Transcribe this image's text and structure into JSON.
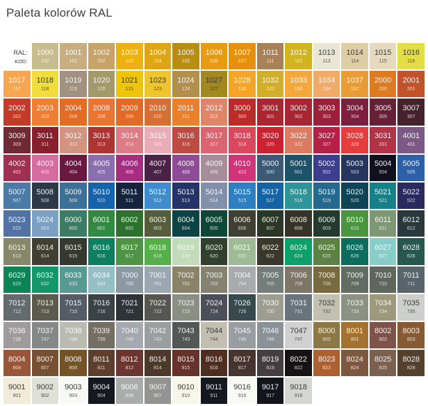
{
  "title": "Paleta kolorów RAL",
  "header": {
    "ral_label": "RAL:",
    "kod_label": "KOD:"
  },
  "colors": {
    "light_text": "#FFFFFF",
    "dark_text": "#3B3B3B",
    "title_color": "#3E3E3D",
    "background": "#FFFFFF"
  },
  "chart_data": {
    "type": "table",
    "title": "Paleta kolorów RAL",
    "columns": [
      "RAL",
      "KOD"
    ],
    "columns_per_row": 15,
    "legend_position": "none",
    "rows": [
      [
        {
          "header": true
        },
        {
          "ral": "1000",
          "kod": "100",
          "hex": "#C6BC8F"
        },
        {
          "ral": "1001",
          "kod": "101",
          "hex": "#C7AD7F"
        },
        {
          "ral": "1002",
          "kod": "102",
          "hex": "#C7A368"
        },
        {
          "ral": "1003",
          "kod": "103",
          "hex": "#EDB211"
        },
        {
          "ral": "1004",
          "kod": "104",
          "hex": "#DFA612"
        },
        {
          "ral": "1005",
          "kod": "105",
          "hex": "#B78D12"
        },
        {
          "ral": "1006",
          "kod": "106",
          "hex": "#E89B10"
        },
        {
          "ral": "1007",
          "kod": "107",
          "hex": "#E6910E"
        },
        {
          "ral": "1011",
          "kod": "111",
          "hex": "#A98159"
        },
        {
          "ral": "1012",
          "kod": "112",
          "hex": "#D2B51E"
        },
        {
          "ral": "1013",
          "kod": "113",
          "hex": "#E9E6D4",
          "dark_text": true
        },
        {
          "ral": "1014",
          "kod": "114",
          "hex": "#DECDA5",
          "dark_text": true
        },
        {
          "ral": "1015",
          "kod": "115",
          "hex": "#E7D9C0",
          "dark_text": true
        },
        {
          "ral": "1016",
          "kod": "116",
          "hex": "#E4DE45",
          "dark_text": true
        }
      ],
      [
        {
          "ral": "1017",
          "kod": "117",
          "hex": "#F4A651"
        },
        {
          "ral": "1018",
          "kod": "118",
          "hex": "#EFDC3E",
          "dark_text": true
        },
        {
          "ral": "1019",
          "kod": "119",
          "hex": "#A29181"
        },
        {
          "ral": "1020",
          "kod": "120",
          "hex": "#A29A68"
        },
        {
          "ral": "1021",
          "kod": "121",
          "hex": "#EDC50A",
          "dark_text": true
        },
        {
          "ral": "1023",
          "kod": "123",
          "hex": "#EFC52E",
          "dark_text": true
        },
        {
          "ral": "1024",
          "kod": "124",
          "hex": "#B28F4D"
        },
        {
          "ral": "1027",
          "kod": "127",
          "hex": "#A1891F",
          "dark_text": true
        },
        {
          "ral": "1028",
          "kod": "128",
          "hex": "#F4A428"
        },
        {
          "ral": "1032",
          "kod": "132",
          "hex": "#D2AF2A"
        },
        {
          "ral": "1033",
          "kod": "133",
          "hex": "#F4A83C"
        },
        {
          "ral": "1034",
          "kod": "134",
          "hex": "#EFAB67"
        },
        {
          "ral": "1037",
          "kod": "137",
          "hex": "#EA9C34"
        },
        {
          "ral": "2000",
          "kod": "200",
          "hex": "#DC7B20"
        },
        {
          "ral": "2001",
          "kod": "201",
          "hex": "#C0532A"
        }
      ],
      [
        {
          "ral": "2002",
          "kod": "202",
          "hex": "#C23B27"
        },
        {
          "ral": "2003",
          "kod": "203",
          "hex": "#EF7D33"
        },
        {
          "ral": "2004",
          "kod": "204",
          "hex": "#E56A24"
        },
        {
          "ral": "2008",
          "kod": "208",
          "hex": "#EC7430"
        },
        {
          "ral": "2009",
          "kod": "209",
          "hex": "#E26A26"
        },
        {
          "ral": "2010",
          "kod": "210",
          "hex": "#D76F34"
        },
        {
          "ral": "2011",
          "kod": "211",
          "hex": "#E8802E"
        },
        {
          "ral": "2012",
          "kod": "212",
          "hex": "#E18568"
        },
        {
          "ral": "3000",
          "kod": "300",
          "hex": "#BB2C29"
        },
        {
          "ral": "3001",
          "kod": "301",
          "hex": "#AA2732"
        },
        {
          "ral": "3002",
          "kod": "302",
          "hex": "#A92532"
        },
        {
          "ral": "3003",
          "kod": "303",
          "hex": "#9A203C"
        },
        {
          "ral": "3004",
          "kod": "304",
          "hex": "#7C1F3E"
        },
        {
          "ral": "3005",
          "kod": "305",
          "hex": "#672038"
        },
        {
          "ral": "3007",
          "kod": "307",
          "hex": "#45222E"
        }
      ],
      [
        {
          "ral": "3009",
          "kod": "309",
          "hex": "#6F2A35"
        },
        {
          "ral": "3011",
          "kod": "311",
          "hex": "#86202D"
        },
        {
          "ral": "3012",
          "kod": "312",
          "hex": "#D29380"
        },
        {
          "ral": "3013",
          "kod": "313",
          "hex": "#AE3434"
        },
        {
          "ral": "3014",
          "kod": "314",
          "hex": "#DC7C85"
        },
        {
          "ral": "3015",
          "kod": "315",
          "hex": "#E8ABB7"
        },
        {
          "ral": "3016",
          "kod": "316",
          "hex": "#BC4B43"
        },
        {
          "ral": "3017",
          "kod": "317",
          "hex": "#DC6471"
        },
        {
          "ral": "3018",
          "kod": "318",
          "hex": "#D9485C"
        },
        {
          "ral": "3020",
          "kod": "320",
          "hex": "#CB2232"
        },
        {
          "ral": "3022",
          "kod": "322",
          "hex": "#DC7A62"
        },
        {
          "ral": "3027",
          "kod": "327",
          "hex": "#B52049"
        },
        {
          "ral": "3028",
          "kod": "328",
          "hex": "#E73C3E"
        },
        {
          "ral": "3031",
          "kod": "331",
          "hex": "#B13345"
        },
        {
          "ral": "4001",
          "kod": "401",
          "hex": "#7D5A86"
        }
      ],
      [
        {
          "ral": "4002",
          "kod": "402",
          "hex": "#A03052"
        },
        {
          "ral": "4003",
          "kod": "403",
          "hex": "#D56B9E"
        },
        {
          "ral": "4004",
          "kod": "404",
          "hex": "#6B1840"
        },
        {
          "ral": "4005",
          "kod": "405",
          "hex": "#8A6EAE"
        },
        {
          "ral": "4006",
          "kod": "406",
          "hex": "#A52C81"
        },
        {
          "ral": "4007",
          "kod": "407",
          "hex": "#4A2147"
        },
        {
          "ral": "4008",
          "kod": "408",
          "hex": "#8F4B96"
        },
        {
          "ral": "4009",
          "kod": "409",
          "hex": "#A78D99"
        },
        {
          "ral": "4010",
          "kod": "410",
          "hex": "#D13479"
        },
        {
          "ral": "5000",
          "kod": "500",
          "hex": "#3C5A76"
        },
        {
          "ral": "5001",
          "kod": "501",
          "hex": "#1D5269"
        },
        {
          "ral": "5002",
          "kod": "502",
          "hex": "#3A3E8C"
        },
        {
          "ral": "5003",
          "kod": "503",
          "hex": "#25365C"
        },
        {
          "ral": "5004",
          "kod": "504",
          "hex": "#11101F"
        },
        {
          "ral": "5005",
          "kod": "505",
          "hex": "#2C60A9"
        }
      ],
      [
        {
          "ral": "5007",
          "kod": "507",
          "hex": "#4A7AA5"
        },
        {
          "ral": "5008",
          "kod": "508",
          "hex": "#2B3947"
        },
        {
          "ral": "5009",
          "kod": "509",
          "hex": "#3D7096"
        },
        {
          "ral": "5010",
          "kod": "510",
          "hex": "#1463AC"
        },
        {
          "ral": "5011",
          "kod": "511",
          "hex": "#16243E"
        },
        {
          "ral": "5012",
          "kod": "512",
          "hex": "#3E8CCE"
        },
        {
          "ral": "5013",
          "kod": "513",
          "hex": "#243469"
        },
        {
          "ral": "5014",
          "kod": "514",
          "hex": "#8290AB"
        },
        {
          "ral": "5015",
          "kod": "515",
          "hex": "#2E7FC2"
        },
        {
          "ral": "5017",
          "kod": "517",
          "hex": "#1463A5"
        },
        {
          "ral": "5018",
          "kod": "518",
          "hex": "#2D9499"
        },
        {
          "ral": "5019",
          "kod": "519",
          "hex": "#26698F"
        },
        {
          "ral": "5020",
          "kod": "520",
          "hex": "#0E4455"
        },
        {
          "ral": "5021",
          "kod": "521",
          "hex": "#178189"
        },
        {
          "ral": "5022",
          "kod": "522",
          "hex": "#2A2A60"
        }
      ],
      [
        {
          "ral": "5023",
          "kod": "523",
          "hex": "#5272A3"
        },
        {
          "ral": "5024",
          "kod": "524",
          "hex": "#7BA0C4"
        },
        {
          "ral": "6000",
          "kod": "600",
          "hex": "#3A7D64"
        },
        {
          "ral": "6001",
          "kod": "601",
          "hex": "#318942"
        },
        {
          "ral": "6002",
          "kod": "602",
          "hex": "#2D712F"
        },
        {
          "ral": "6003",
          "kod": "603",
          "hex": "#565D3B"
        },
        {
          "ral": "6004",
          "kod": "604",
          "hex": "#0C4344"
        },
        {
          "ral": "6005",
          "kod": "605",
          "hex": "#0F4736"
        },
        {
          "ral": "6006",
          "kod": "606",
          "hex": "#403F34"
        },
        {
          "ral": "6007",
          "kod": "607",
          "hex": "#2A3626"
        },
        {
          "ral": "6008",
          "kod": "608",
          "hex": "#363428"
        },
        {
          "ral": "6009",
          "kod": "609",
          "hex": "#233A2C"
        },
        {
          "ral": "6010",
          "kod": "610",
          "hex": "#4B9540"
        },
        {
          "ral": "6011",
          "kod": "611",
          "hex": "#7D9873"
        },
        {
          "ral": "6012",
          "kod": "612",
          "hex": "#29383B"
        }
      ],
      [
        {
          "ral": "6013",
          "kod": "613",
          "hex": "#87876A"
        },
        {
          "ral": "6014",
          "kod": "614",
          "hex": "#413F31"
        },
        {
          "ral": "6015",
          "kod": "615",
          "hex": "#36392F"
        },
        {
          "ral": "6016",
          "kod": "616",
          "hex": "#0C8061"
        },
        {
          "ral": "6017",
          "kod": "617",
          "hex": "#4F9347"
        },
        {
          "ral": "6018",
          "kod": "618",
          "hex": "#56B04A"
        },
        {
          "ral": "6019",
          "kod": "619",
          "hex": "#C0DCB8"
        },
        {
          "ral": "6020",
          "kod": "620",
          "hex": "#31402F"
        },
        {
          "ral": "6021",
          "kod": "621",
          "hex": "#9DBB95"
        },
        {
          "ral": "6022",
          "kod": "622",
          "hex": "#3A372B"
        },
        {
          "ral": "6024",
          "kod": "624",
          "hex": "#0DA06A"
        },
        {
          "ral": "6025",
          "kod": "625",
          "hex": "#5C8343"
        },
        {
          "ral": "6026",
          "kod": "626",
          "hex": "#0B6D5D"
        },
        {
          "ral": "6027",
          "kod": "627",
          "hex": "#87CDC8"
        },
        {
          "ral": "6028",
          "kod": "628",
          "hex": "#275850"
        }
      ],
      [
        {
          "ral": "6029",
          "kod": "629",
          "hex": "#0C8456"
        },
        {
          "ral": "6032",
          "kod": "632",
          "hex": "#14966B"
        },
        {
          "ral": "6033",
          "kod": "633",
          "hex": "#579A93"
        },
        {
          "ral": "6034",
          "kod": "634",
          "hex": "#94BFC4"
        },
        {
          "ral": "7000",
          "kod": "700",
          "hex": "#8B99A3"
        },
        {
          "ral": "7001",
          "kod": "701",
          "hex": "#9BA7B0"
        },
        {
          "ral": "7002",
          "kod": "702",
          "hex": "#8B8368"
        },
        {
          "ral": "7003",
          "kod": "703",
          "hex": "#85826F"
        },
        {
          "ral": "7004",
          "kod": "704",
          "hex": "#A8AAAD"
        },
        {
          "ral": "7005",
          "kod": "705",
          "hex": "#747D79"
        },
        {
          "ral": "7006",
          "kod": "706",
          "hex": "#7E7666"
        },
        {
          "ral": "7008",
          "kod": "708",
          "hex": "#7A6A3F"
        },
        {
          "ral": "7009",
          "kod": "709",
          "hex": "#636C62"
        },
        {
          "ral": "7010",
          "kod": "710",
          "hex": "#5E665E"
        },
        {
          "ral": "7011",
          "kod": "711",
          "hex": "#5A646B"
        }
      ],
      [
        {
          "ral": "7012",
          "kod": "712",
          "hex": "#636B6E"
        },
        {
          "ral": "7013",
          "kod": "713",
          "hex": "#5C5A4A"
        },
        {
          "ral": "7015",
          "kod": "715",
          "hex": "#565C66"
        },
        {
          "ral": "7016",
          "kod": "716",
          "hex": "#3C4347"
        },
        {
          "ral": "7021",
          "kod": "721",
          "hex": "#2F3438"
        },
        {
          "ral": "7022",
          "kod": "722",
          "hex": "#565750"
        },
        {
          "ral": "7023",
          "kod": "723",
          "hex": "#8B8E83"
        },
        {
          "ral": "7024",
          "kod": "724",
          "hex": "#4A4F58"
        },
        {
          "ral": "7026",
          "kod": "726",
          "hex": "#384A4E"
        },
        {
          "ral": "7030",
          "kod": "730",
          "hex": "#9D9D92"
        },
        {
          "ral": "7031",
          "kod": "731",
          "hex": "#68747C"
        },
        {
          "ral": "7032",
          "kod": "732",
          "hex": "#C2C1B1",
          "dark_text": true
        },
        {
          "ral": "7033",
          "kod": "733",
          "hex": "#8B9283"
        },
        {
          "ral": "7034",
          "kod": "734",
          "hex": "#9C997D"
        },
        {
          "ral": "7035",
          "kod": "735",
          "hex": "#CCCFCC",
          "dark_text": true
        }
      ],
      [
        {
          "ral": "7036",
          "kod": "736",
          "hex": "#A09C9D"
        },
        {
          "ral": "7037",
          "kod": "737",
          "hex": "#858887"
        },
        {
          "ral": "7038",
          "kod": "738",
          "hex": "#BABBB3"
        },
        {
          "ral": "7039",
          "kod": "739",
          "hex": "#746E65"
        },
        {
          "ral": "7040",
          "kod": "740",
          "hex": "#A3A9AE"
        },
        {
          "ral": "7042",
          "kod": "742",
          "hex": "#999E9E"
        },
        {
          "ral": "7043",
          "kod": "743",
          "hex": "#535755"
        },
        {
          "ral": "7044",
          "kod": "744",
          "hex": "#C2BEB2",
          "dark_text": true
        },
        {
          "ral": "7045",
          "kod": "745",
          "hex": "#989DA1"
        },
        {
          "ral": "7046",
          "kod": "746",
          "hex": "#8A9298"
        },
        {
          "ral": "7047",
          "kod": "747",
          "hex": "#CFD0CF",
          "dark_text": true
        },
        {
          "ral": "8000",
          "kod": "800",
          "hex": "#8D7845"
        },
        {
          "ral": "8001",
          "kod": "801",
          "hex": "#A4712F"
        },
        {
          "ral": "8002",
          "kod": "802",
          "hex": "#7F5349"
        },
        {
          "ral": "8003",
          "kod": "803",
          "hex": "#875A32"
        }
      ],
      [
        {
          "ral": "8004",
          "kod": "804",
          "hex": "#9A5638"
        },
        {
          "ral": "8007",
          "kod": "807",
          "hex": "#755033"
        },
        {
          "ral": "8008",
          "kod": "808",
          "hex": "#745426"
        },
        {
          "ral": "8011",
          "kod": "811",
          "hex": "#5E3F2D"
        },
        {
          "ral": "8012",
          "kod": "812",
          "hex": "#6D352F"
        },
        {
          "ral": "8014",
          "kod": "814",
          "hex": "#4D392A"
        },
        {
          "ral": "8015",
          "kod": "815",
          "hex": "#673229"
        },
        {
          "ral": "8016",
          "kod": "816",
          "hex": "#4F2E22"
        },
        {
          "ral": "8017",
          "kod": "817",
          "hex": "#473330"
        },
        {
          "ral": "8019",
          "kod": "819",
          "hex": "#443E40"
        },
        {
          "ral": "8022",
          "kod": "822",
          "hex": "#151313"
        },
        {
          "ral": "8023",
          "kod": "823",
          "hex": "#AD6030"
        },
        {
          "ral": "8024",
          "kod": "824",
          "hex": "#7D5740"
        },
        {
          "ral": "8025",
          "kod": "825",
          "hex": "#7A604F"
        },
        {
          "ral": "8028",
          "kod": "828",
          "hex": "#54402D"
        }
      ],
      [
        {
          "ral": "9001",
          "kod": "901",
          "hex": "#F1ECD9",
          "dark_text": true
        },
        {
          "ral": "9002",
          "kod": "902",
          "hex": "#DFE0D6",
          "dark_text": true
        },
        {
          "ral": "9003",
          "kod": "903",
          "hex": "#F7F9F4",
          "dark_text": true
        },
        {
          "ral": "9004",
          "kod": "904",
          "hex": "#14181F"
        },
        {
          "ral": "9006",
          "kod": "906",
          "hex": "#A9ACAB"
        },
        {
          "ral": "9007",
          "kod": "907",
          "hex": "#939391"
        },
        {
          "ral": "9010",
          "kod": "910",
          "hex": "#F6F7EA",
          "dark_text": true
        },
        {
          "ral": "9011",
          "kod": "911",
          "hex": "#14191F"
        },
        {
          "ral": "9016",
          "kod": "916",
          "hex": "#F7FAF3",
          "dark_text": true
        },
        {
          "ral": "9017",
          "kod": "917",
          "hex": "#12161B"
        },
        {
          "ral": "9018",
          "kod": "918",
          "hex": "#D3D7D0",
          "dark_text": true
        },
        null,
        null,
        null,
        null
      ]
    ]
  }
}
